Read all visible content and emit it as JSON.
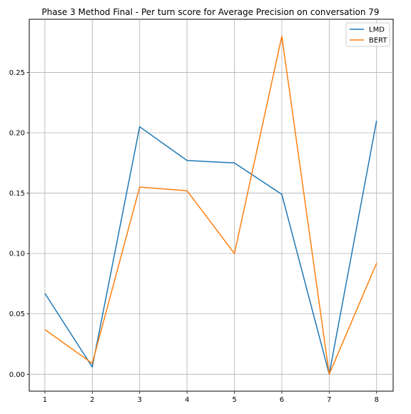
{
  "chart_data": {
    "type": "line",
    "title": "Phase 3 Method Final - Per turn score for Average Precision on conversation 79",
    "xlabel": "",
    "ylabel": "",
    "x": [
      1,
      2,
      3,
      4,
      5,
      6,
      7,
      8
    ],
    "xlim": [
      0.67,
      8.35
    ],
    "ylim": [
      -0.014,
      0.294
    ],
    "xticks": [
      1,
      2,
      3,
      4,
      5,
      6,
      7,
      8
    ],
    "yticks": [
      0.0,
      0.05,
      0.1,
      0.15,
      0.2,
      0.25
    ],
    "ytick_labels": [
      "0.00",
      "0.05",
      "0.10",
      "0.15",
      "0.20",
      "0.25"
    ],
    "grid": true,
    "legend_position": "top-right",
    "series": [
      {
        "name": "LMD",
        "color": "#1f77b4",
        "values": [
          0.067,
          0.006,
          0.205,
          0.177,
          0.175,
          0.149,
          0.0,
          0.21
        ]
      },
      {
        "name": "BERT",
        "color": "#ff7f0e",
        "values": [
          0.037,
          0.009,
          0.155,
          0.152,
          0.1,
          0.28,
          0.0,
          0.092
        ]
      }
    ]
  }
}
